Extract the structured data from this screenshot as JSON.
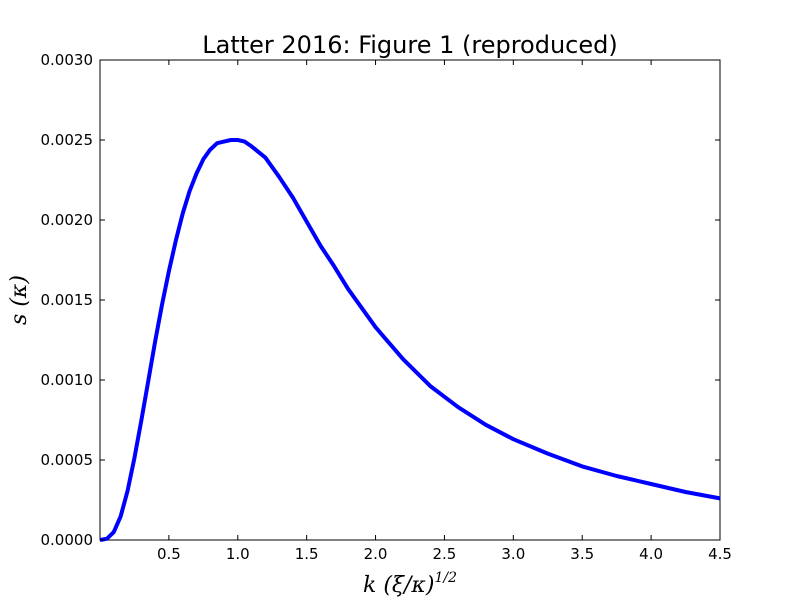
{
  "chart_data": {
    "type": "line",
    "title": "Latter 2016: Figure 1 (reproduced)",
    "xlabel": "k (ξ/κ)",
    "xlabel_superscript": "1/2",
    "ylabel": "s (κ)",
    "xlim": [
      0.0,
      4.5
    ],
    "ylim": [
      0.0,
      0.003
    ],
    "xticks": [
      0.5,
      1.0,
      1.5,
      2.0,
      2.5,
      3.0,
      3.5,
      4.0,
      4.5
    ],
    "xtick_labels": [
      "0.5",
      "1.0",
      "1.5",
      "2.0",
      "2.5",
      "3.0",
      "3.5",
      "4.0",
      "4.5"
    ],
    "yticks": [
      0.0,
      0.0005,
      0.001,
      0.0015,
      0.002,
      0.0025,
      0.003
    ],
    "ytick_labels": [
      "0.0000",
      "0.0005",
      "0.0010",
      "0.0015",
      "0.0020",
      "0.0025",
      "0.0030"
    ],
    "grid": false,
    "legend": "none",
    "series": [
      {
        "color": "#0000ff",
        "x": [
          0.0,
          0.05,
          0.1,
          0.15,
          0.2,
          0.25,
          0.3,
          0.35,
          0.4,
          0.45,
          0.5,
          0.55,
          0.6,
          0.65,
          0.7,
          0.75,
          0.8,
          0.85,
          0.9,
          0.95,
          1.0,
          1.05,
          1.1,
          1.2,
          1.3,
          1.4,
          1.5,
          1.6,
          1.7,
          1.8,
          2.0,
          2.2,
          2.4,
          2.6,
          2.8,
          3.0,
          3.25,
          3.5,
          3.75,
          4.0,
          4.25,
          4.5
        ],
        "y": [
          0.0,
          7.8e-06,
          4.95e-05,
          0.000148,
          0.000307,
          0.000513,
          0.000747,
          0.000992,
          0.00124,
          0.00147,
          0.00168,
          0.00187,
          0.00204,
          0.00218,
          0.00229,
          0.00238,
          0.00244,
          0.00248,
          0.00249,
          0.0025,
          0.0025,
          0.00249,
          0.00246,
          0.00239,
          0.00227,
          0.00214,
          0.00199,
          0.00184,
          0.00171,
          0.00157,
          0.00133,
          0.00113,
          0.00096,
          0.00083,
          0.00072,
          0.00063,
          0.00054,
          0.00046,
          0.0004,
          0.00035,
          0.0003,
          0.00026
        ]
      }
    ]
  }
}
